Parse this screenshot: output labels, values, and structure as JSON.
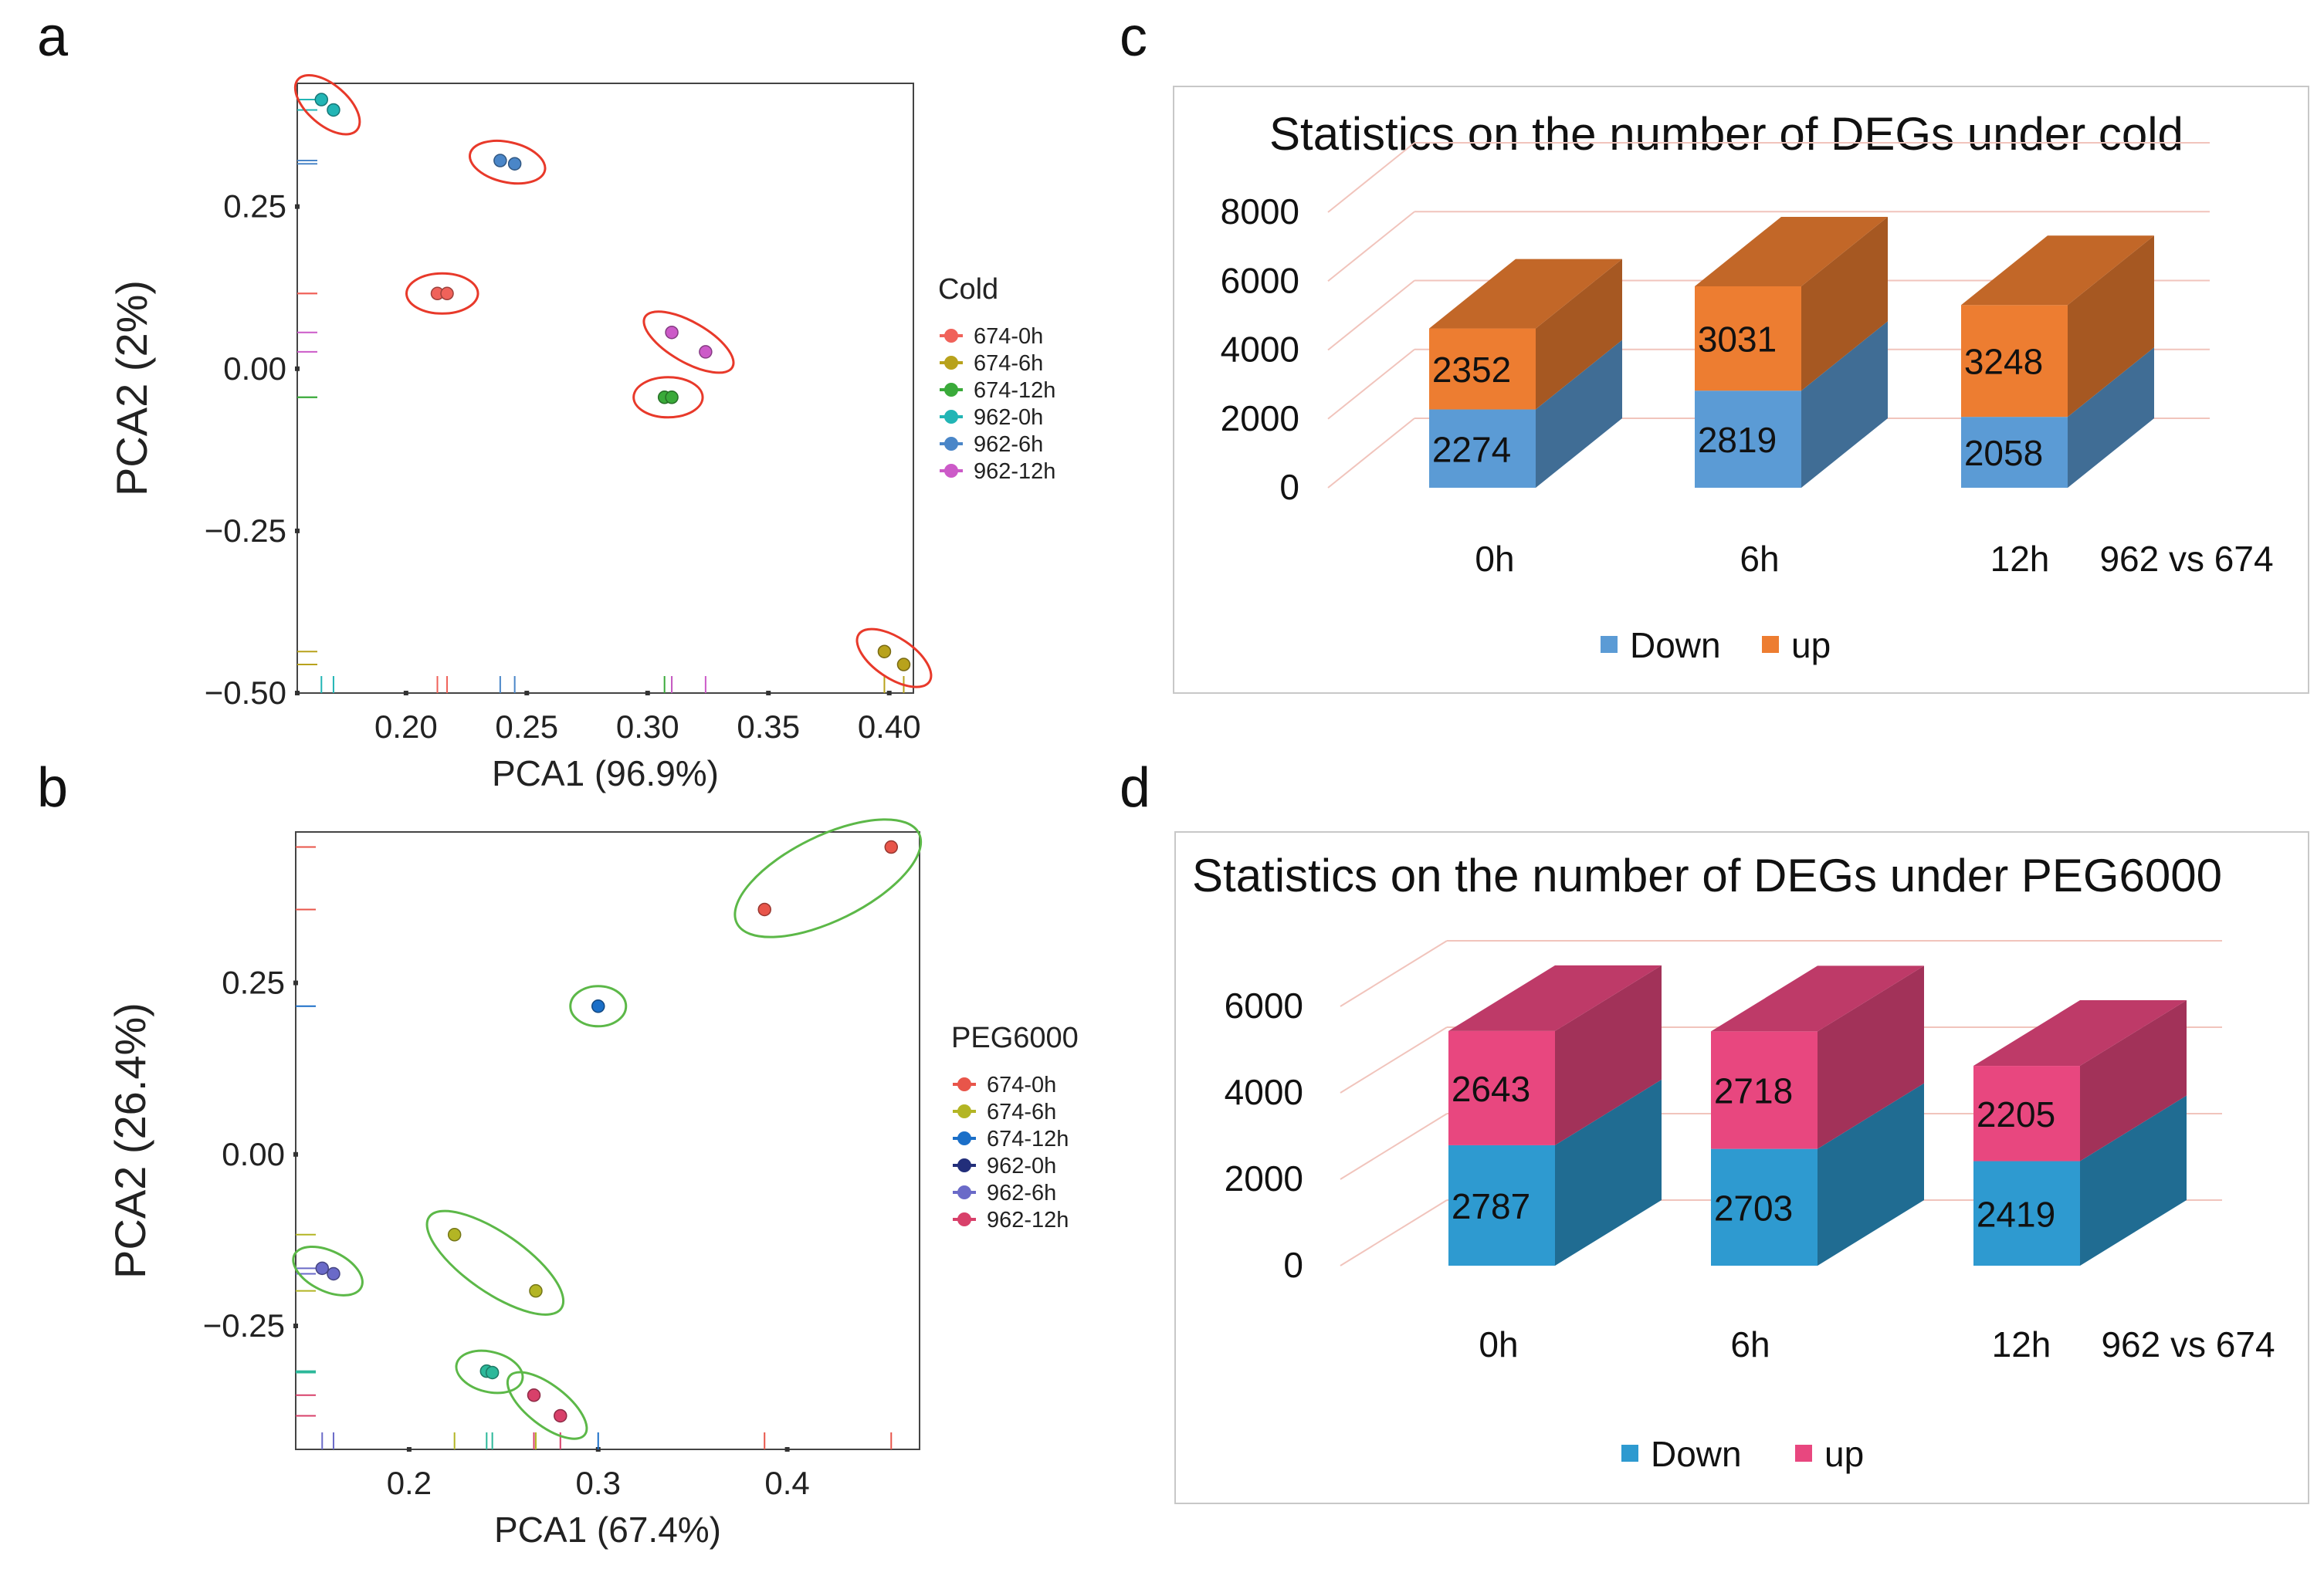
{
  "panel_labels": {
    "a": "a",
    "b": "b",
    "c": "c",
    "d": "d"
  },
  "chart_data": [
    {
      "panel": "a",
      "type": "scatter",
      "xlabel": "PCA1 (96.9%)",
      "ylabel": "PCA2 (2%)",
      "xlim": [
        0.155,
        0.41
      ],
      "ylim": [
        -0.5,
        0.44
      ],
      "xticks": [
        {
          "v": 0.2,
          "label": "0.20"
        },
        {
          "v": 0.25,
          "label": "0.25"
        },
        {
          "v": 0.3,
          "label": "0.30"
        },
        {
          "v": 0.35,
          "label": "0.35"
        },
        {
          "v": 0.4,
          "label": "0.40"
        }
      ],
      "yticks": [
        {
          "v": 0.25,
          "label": "0.25"
        },
        {
          "v": 0.0,
          "label": "0.00"
        },
        {
          "v": -0.25,
          "label": "−0.25"
        },
        {
          "v": -0.5,
          "label": "−0.50"
        }
      ],
      "legend_title": "Cold",
      "ellipse_color": "#e8392a",
      "series": [
        {
          "name": "674-0h",
          "color": "#f0625a",
          "points": [
            [
              0.213,
              0.116
            ],
            [
              0.217,
              0.116
            ]
          ]
        },
        {
          "name": "674-6h",
          "color": "#b8a21c",
          "points": [
            [
              0.398,
              -0.436
            ],
            [
              0.406,
              -0.456
            ]
          ]
        },
        {
          "name": "674-12h",
          "color": "#3aaa3a",
          "points": [
            [
              0.307,
              -0.044
            ],
            [
              0.31,
              -0.044
            ]
          ]
        },
        {
          "name": "962-0h",
          "color": "#22b5b5",
          "points": [
            [
              0.165,
              0.415
            ],
            [
              0.17,
              0.399
            ]
          ]
        },
        {
          "name": "962-6h",
          "color": "#4a86c8",
          "points": [
            [
              0.239,
              0.321
            ],
            [
              0.245,
              0.316
            ]
          ]
        },
        {
          "name": "962-12h",
          "color": "#cc5ac8",
          "points": [
            [
              0.31,
              0.056
            ],
            [
              0.324,
              0.026
            ]
          ]
        }
      ]
    },
    {
      "panel": "b",
      "type": "scatter",
      "xlabel": "PCA1 (67.4%)",
      "ylabel": "PCA2 (26.4%)",
      "xlim": [
        0.14,
        0.47
      ],
      "ylim": [
        -0.43,
        0.47
      ],
      "xticks": [
        {
          "v": 0.2,
          "label": "0.2"
        },
        {
          "v": 0.3,
          "label": "0.3"
        },
        {
          "v": 0.4,
          "label": "0.4"
        }
      ],
      "yticks": [
        {
          "v": 0.25,
          "label": "0.25"
        },
        {
          "v": 0.0,
          "label": "0.00"
        },
        {
          "v": -0.25,
          "label": "−0.25"
        }
      ],
      "legend_title": "PEG6000",
      "ellipse_color": "#5cb848",
      "series": [
        {
          "name": "674-0h",
          "color": "#e8554a",
          "points": [
            [
              0.388,
              0.357
            ],
            [
              0.455,
              0.448
            ]
          ]
        },
        {
          "name": "674-6h",
          "color": "#b3b524",
          "points": [
            [
              0.224,
              -0.117
            ],
            [
              0.267,
              -0.199
            ]
          ]
        },
        {
          "name": "674-12h",
          "color": "#1b6fc8",
          "points": [
            [
              0.3,
              0.216
            ]
          ]
        },
        {
          "name": "962-0h",
          "color": "#222e7a",
          "points": []
        },
        {
          "name": "962-6h",
          "color": "#6a6ac8",
          "points": [
            [
              0.154,
              -0.166
            ],
            [
              0.16,
              -0.174
            ]
          ]
        },
        {
          "name": "962-12h",
          "color": "#d8406a",
          "points": [
            [
              0.266,
              -0.351
            ],
            [
              0.28,
              -0.381
            ]
          ]
        },
        {
          "name": "",
          "color": "#2cb89a",
          "points": [
            [
              0.241,
              -0.316
            ],
            [
              0.244,
              -0.318
            ]
          ]
        }
      ]
    },
    {
      "panel": "c",
      "type": "bar",
      "title": "Statistics on the number of DEGs under cold",
      "categories": [
        "0h",
        "6h",
        "12h"
      ],
      "comparison": "962 vs 674",
      "ylim": [
        0,
        8000
      ],
      "yticks": [
        {
          "v": 0,
          "label": "0"
        },
        {
          "v": 2000,
          "label": "2000"
        },
        {
          "v": 4000,
          "label": "4000"
        },
        {
          "v": 6000,
          "label": "6000"
        },
        {
          "v": 8000,
          "label": "8000"
        }
      ],
      "series": [
        {
          "name": "Down",
          "color": "#5b9bd5",
          "values": [
            2274,
            2819,
            2058
          ]
        },
        {
          "name": "up",
          "color": "#ed7d31",
          "values": [
            2352,
            3031,
            3248
          ]
        }
      ]
    },
    {
      "panel": "d",
      "type": "bar",
      "title": "Statistics on the number of DEGs under PEG6000",
      "categories": [
        "0h",
        "6h",
        "12h"
      ],
      "comparison": "962 vs 674",
      "ylim": [
        0,
        6000
      ],
      "yticks": [
        {
          "v": 0,
          "label": "0"
        },
        {
          "v": 2000,
          "label": "2000"
        },
        {
          "v": 4000,
          "label": "4000"
        },
        {
          "v": 6000,
          "label": "6000"
        }
      ],
      "series": [
        {
          "name": "Down",
          "color": "#2e9ad0",
          "values": [
            2787,
            2703,
            2419
          ]
        },
        {
          "name": "up",
          "color": "#e8477f",
          "values": [
            2643,
            2718,
            2205
          ]
        }
      ]
    }
  ]
}
